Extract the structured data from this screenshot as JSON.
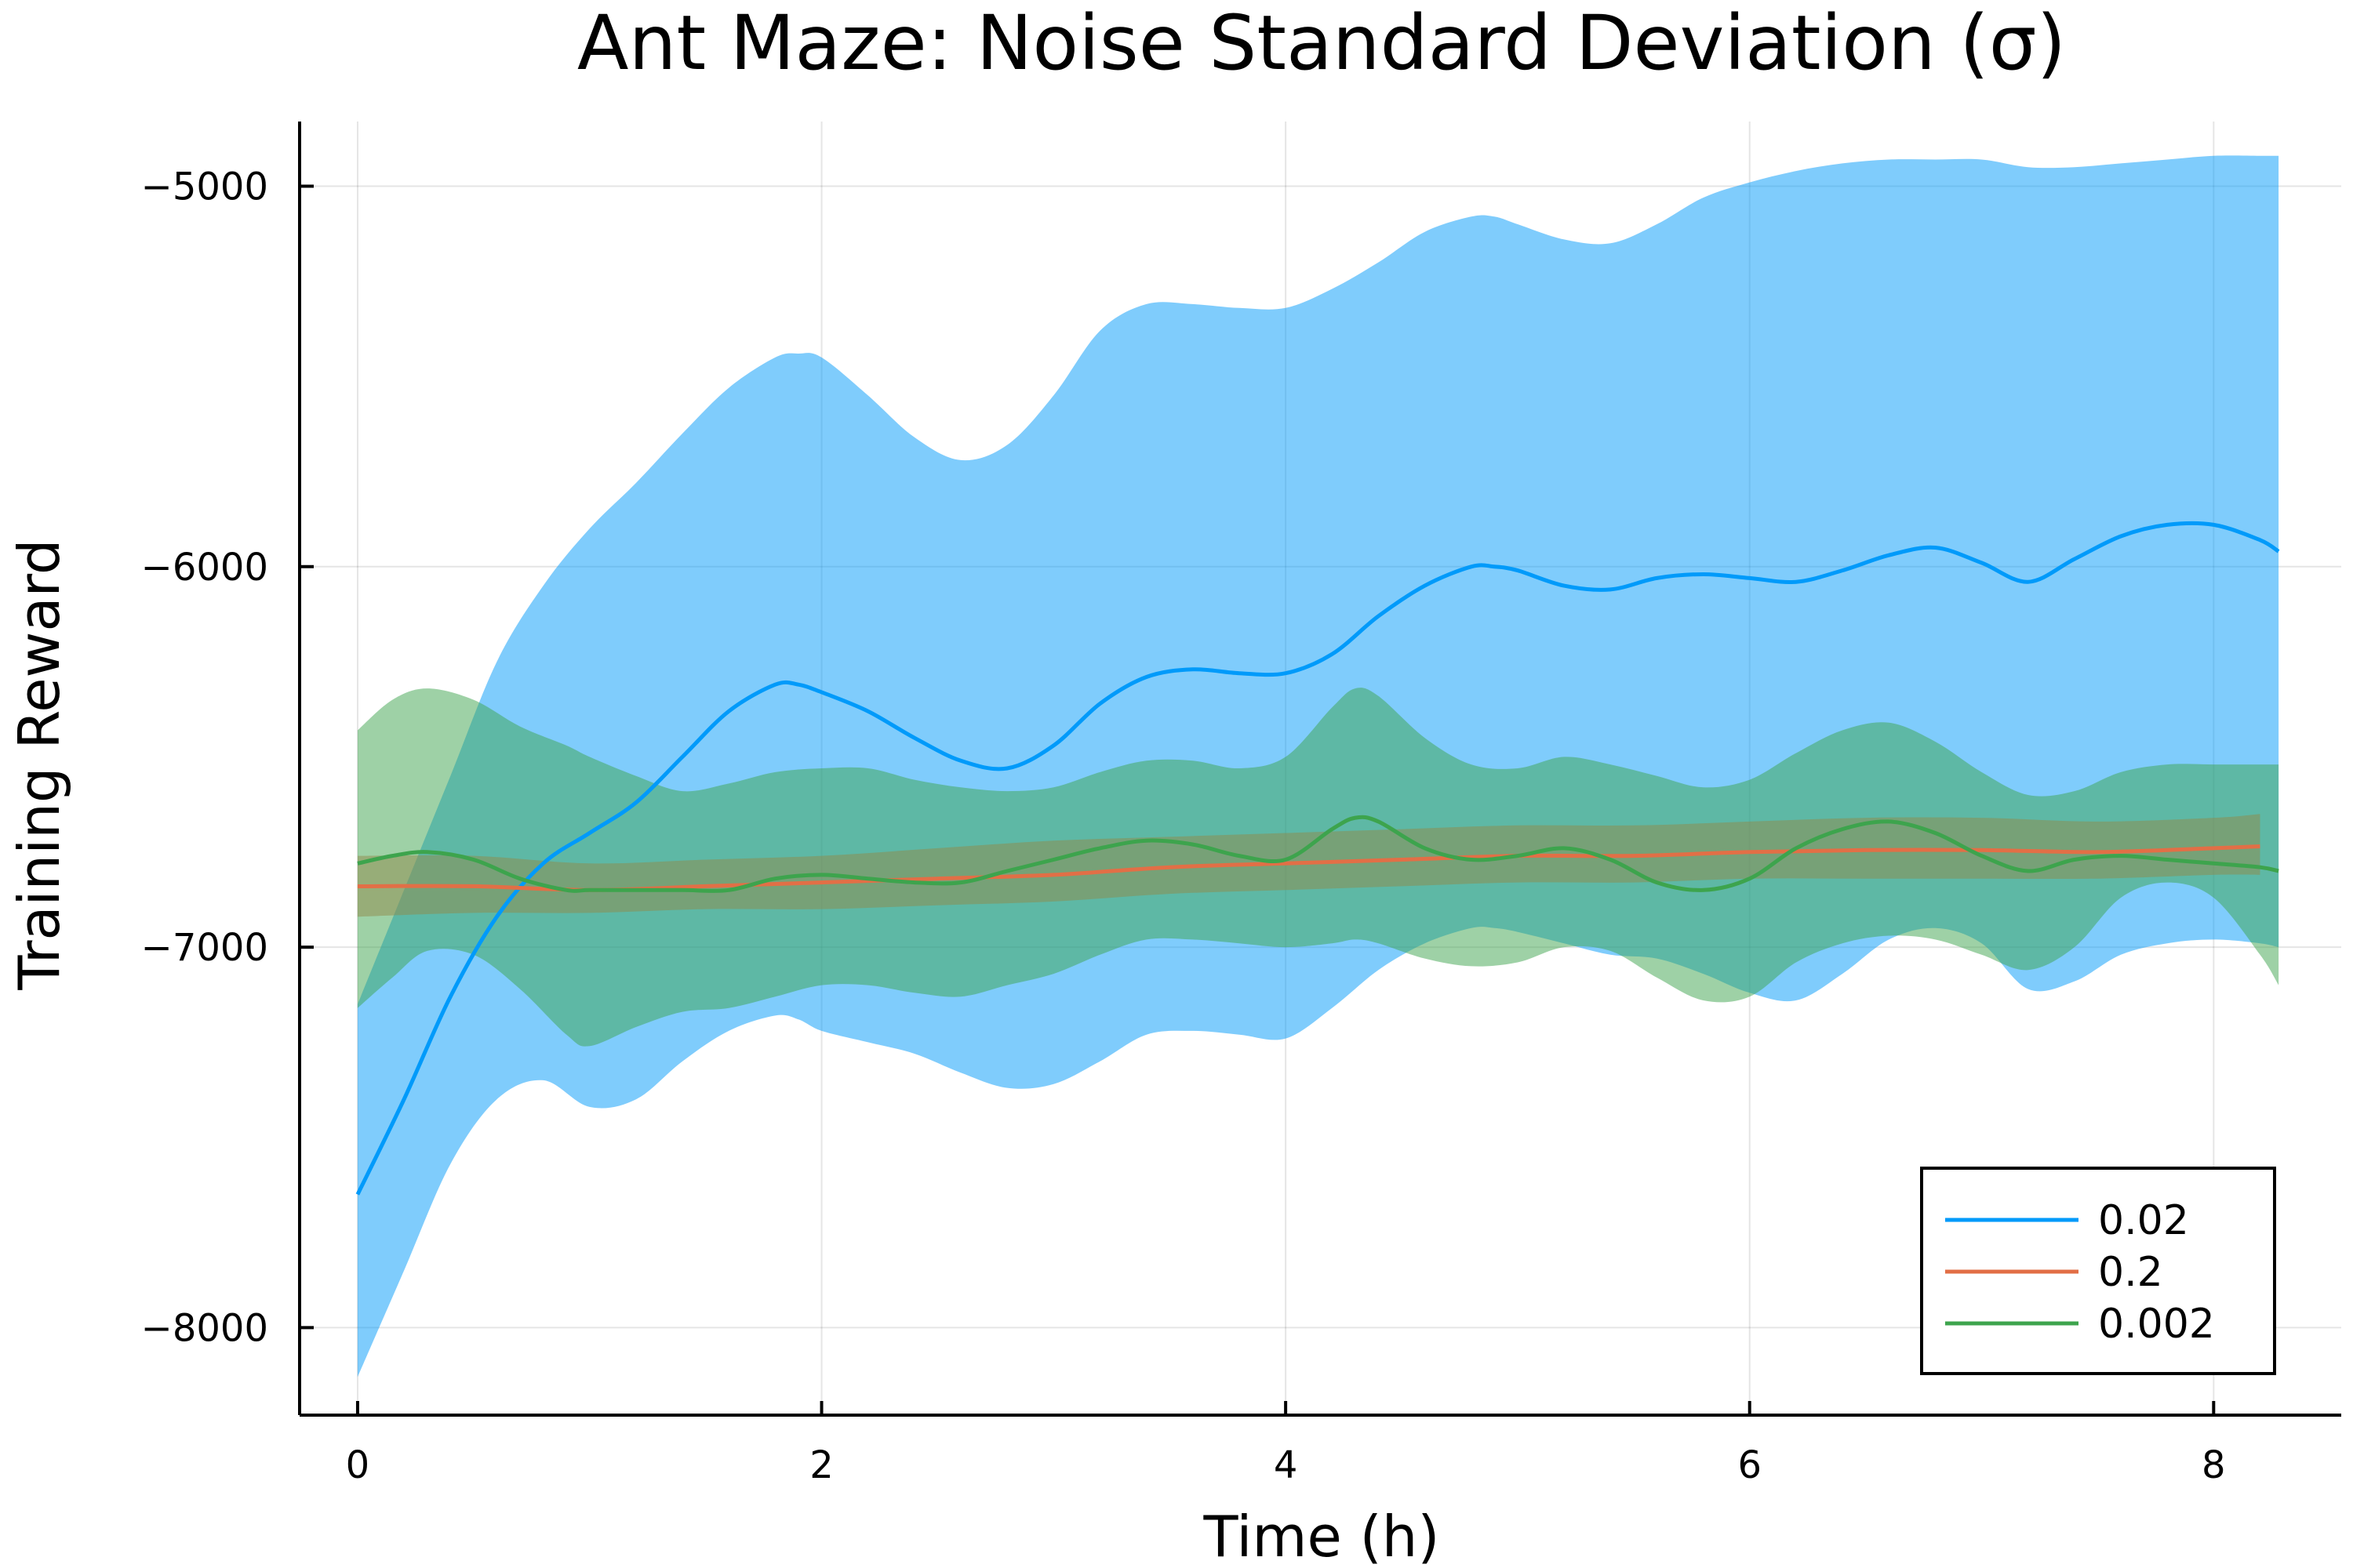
{
  "chart_data": {
    "type": "line",
    "title": "Ant Maze: Noise Standard Deviation (σ)",
    "xlabel": "Time (h)",
    "ylabel": "Training Reward",
    "xlim": [
      -0.25,
      8.55
    ],
    "ylim": [
      -8230,
      -4830
    ],
    "xticks": [
      0,
      2,
      4,
      6,
      8
    ],
    "xtick_labels": [
      "0",
      "2",
      "4",
      "6",
      "8"
    ],
    "yticks": [
      -8000,
      -7000,
      -6000,
      -5000
    ],
    "ytick_labels": [
      "−8000",
      "−7000",
      "−6000",
      "−5000"
    ],
    "grid": true,
    "legend_position": "bottom-right",
    "series": [
      {
        "name": "0.02",
        "color": "#009AFA",
        "band_opacity": 0.5,
        "x": [
          0,
          0.2,
          0.4,
          0.6,
          0.8,
          1.0,
          1.2,
          1.4,
          1.6,
          1.8,
          1.9,
          2.0,
          2.2,
          2.4,
          2.6,
          2.8,
          3.0,
          3.2,
          3.4,
          3.6,
          3.8,
          4.0,
          4.2,
          4.4,
          4.6,
          4.8,
          4.9,
          5.0,
          5.2,
          5.4,
          5.6,
          5.8,
          6.0,
          6.2,
          6.4,
          6.6,
          6.8,
          7.0,
          7.2,
          7.4,
          7.6,
          7.8,
          8.0,
          8.2,
          8.28
        ],
        "mean": [
          -7650,
          -7400,
          -7130,
          -6920,
          -6780,
          -6700,
          -6620,
          -6500,
          -6380,
          -6310,
          -6310,
          -6330,
          -6380,
          -6450,
          -6510,
          -6530,
          -6470,
          -6360,
          -6290,
          -6270,
          -6280,
          -6280,
          -6230,
          -6130,
          -6050,
          -6000,
          -6000,
          -6010,
          -6050,
          -6060,
          -6030,
          -6020,
          -6030,
          -6040,
          -6010,
          -5970,
          -5950,
          -5990,
          -6040,
          -5980,
          -5920,
          -5890,
          -5890,
          -5930,
          -5960
        ],
        "upper": [
          -7150,
          -6850,
          -6550,
          -6250,
          -6050,
          -5900,
          -5780,
          -5650,
          -5530,
          -5450,
          -5440,
          -5450,
          -5550,
          -5660,
          -5720,
          -5680,
          -5550,
          -5380,
          -5310,
          -5310,
          -5320,
          -5320,
          -5270,
          -5200,
          -5120,
          -5080,
          -5080,
          -5100,
          -5140,
          -5150,
          -5100,
          -5030,
          -4990,
          -4960,
          -4940,
          -4930,
          -4930,
          -4930,
          -4950,
          -4950,
          -4940,
          -4930,
          -4920,
          -4920,
          -4920
        ],
        "lower": [
          -8130,
          -7850,
          -7570,
          -7400,
          -7350,
          -7420,
          -7400,
          -7300,
          -7220,
          -7180,
          -7190,
          -7220,
          -7250,
          -7280,
          -7330,
          -7370,
          -7360,
          -7300,
          -7230,
          -7220,
          -7230,
          -7240,
          -7160,
          -7060,
          -6990,
          -6950,
          -6950,
          -6960,
          -6990,
          -7020,
          -7030,
          -7070,
          -7120,
          -7140,
          -7070,
          -6980,
          -6950,
          -6990,
          -7110,
          -7090,
          -7020,
          -6990,
          -6980,
          -6990,
          -7000
        ]
      },
      {
        "name": "0.2",
        "color": "#E26F46",
        "band_opacity": 0.5,
        "x": [
          0,
          0.5,
          1.0,
          1.5,
          2.0,
          2.5,
          3.0,
          3.5,
          4.0,
          4.5,
          5.0,
          5.5,
          6.0,
          6.5,
          7.0,
          7.5,
          8.0,
          8.2
        ],
        "mean": [
          -6840,
          -6840,
          -6850,
          -6840,
          -6830,
          -6820,
          -6810,
          -6790,
          -6780,
          -6770,
          -6760,
          -6760,
          -6750,
          -6745,
          -6745,
          -6750,
          -6740,
          -6735
        ],
        "upper": [
          -6760,
          -6760,
          -6780,
          -6770,
          -6760,
          -6740,
          -6720,
          -6710,
          -6700,
          -6690,
          -6680,
          -6680,
          -6670,
          -6660,
          -6660,
          -6670,
          -6660,
          -6650
        ],
        "lower": [
          -6920,
          -6910,
          -6910,
          -6900,
          -6900,
          -6890,
          -6880,
          -6860,
          -6850,
          -6840,
          -6830,
          -6830,
          -6820,
          -6820,
          -6820,
          -6820,
          -6810,
          -6810
        ]
      },
      {
        "name": "0.002",
        "color": "#3DA44D",
        "band_opacity": 0.5,
        "x": [
          0,
          0.15,
          0.3,
          0.5,
          0.7,
          0.9,
          1.0,
          1.2,
          1.4,
          1.6,
          1.8,
          2.0,
          2.2,
          2.4,
          2.6,
          2.8,
          3.0,
          3.2,
          3.4,
          3.6,
          3.8,
          4.0,
          4.2,
          4.3,
          4.4,
          4.6,
          4.8,
          5.0,
          5.2,
          5.4,
          5.6,
          5.8,
          6.0,
          6.2,
          6.4,
          6.6,
          6.8,
          7.0,
          7.2,
          7.4,
          7.6,
          7.8,
          8.0,
          8.2,
          8.28
        ],
        "mean": [
          -6780,
          -6760,
          -6750,
          -6770,
          -6820,
          -6850,
          -6850,
          -6850,
          -6850,
          -6850,
          -6820,
          -6810,
          -6820,
          -6830,
          -6830,
          -6800,
          -6770,
          -6740,
          -6720,
          -6730,
          -6760,
          -6770,
          -6690,
          -6660,
          -6670,
          -6740,
          -6770,
          -6760,
          -6740,
          -6770,
          -6830,
          -6850,
          -6820,
          -6740,
          -6690,
          -6670,
          -6700,
          -6760,
          -6800,
          -6770,
          -6760,
          -6770,
          -6780,
          -6790,
          -6800
        ],
        "upper": [
          -6430,
          -6350,
          -6320,
          -6350,
          -6420,
          -6470,
          -6500,
          -6550,
          -6590,
          -6570,
          -6540,
          -6530,
          -6530,
          -6560,
          -6580,
          -6590,
          -6580,
          -6540,
          -6510,
          -6510,
          -6530,
          -6500,
          -6370,
          -6320,
          -6340,
          -6450,
          -6520,
          -6530,
          -6500,
          -6520,
          -6550,
          -6580,
          -6560,
          -6490,
          -6430,
          -6410,
          -6460,
          -6540,
          -6600,
          -6590,
          -6540,
          -6520,
          -6520,
          -6520,
          -6520
        ],
        "lower": [
          -7160,
          -7080,
          -7010,
          -7020,
          -7110,
          -7230,
          -7260,
          -7210,
          -7170,
          -7160,
          -7130,
          -7100,
          -7100,
          -7120,
          -7130,
          -7100,
          -7070,
          -7020,
          -6980,
          -6980,
          -6990,
          -7000,
          -6990,
          -6980,
          -6990,
          -7030,
          -7050,
          -7040,
          -7000,
          -7010,
          -7080,
          -7140,
          -7130,
          -7040,
          -6990,
          -6970,
          -6980,
          -7020,
          -7060,
          -7000,
          -6870,
          -6830,
          -6870,
          -7020,
          -7100
        ]
      }
    ]
  }
}
